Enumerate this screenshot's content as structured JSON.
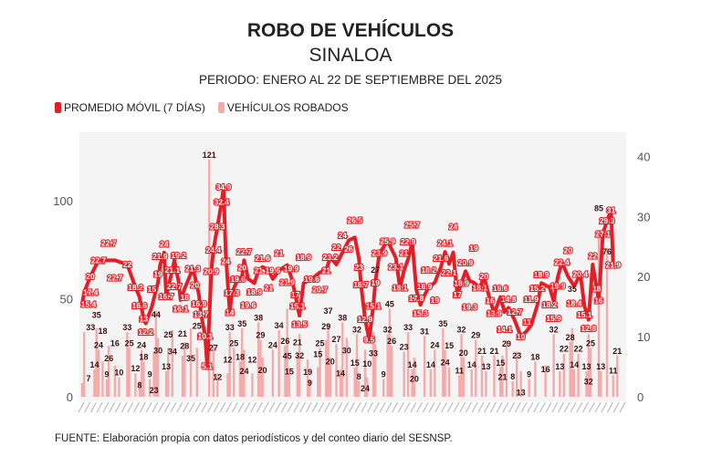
{
  "title": "ROBO DE VEHÍCULOS",
  "subtitle": "SINALOA",
  "period": "PERIODO: ENERO AL 22 DE SEPTIEMBRE DEL 2025",
  "footer": "FUENTE: Elaboración propia con datos periodísticos y del conteo diario del SESNSP.",
  "chart_data": {
    "type": "bar+line",
    "legend_position": "top-left",
    "grid": true,
    "x_unit": "day of year 2025",
    "xlim": [
      1,
      265
    ],
    "left_axis": {
      "ylim": [
        0,
        135
      ],
      "ticks": [
        0,
        50,
        100
      ]
    },
    "right_axis": {
      "ylim": [
        0,
        44
      ],
      "ticks": [
        0,
        10,
        20,
        30,
        40
      ]
    },
    "colors": {
      "line": "#e41e26",
      "bars": "#f4aaaa",
      "plot_bg": "#f4f4f4"
    },
    "series": [
      {
        "name": "VEHÍCULOS ROBADOS",
        "axis": "left",
        "type": "bar",
        "points": [
          [
            1,
            7
          ],
          [
            2,
            33
          ],
          [
            7,
            14
          ],
          [
            8,
            35
          ],
          [
            9,
            24
          ],
          [
            11,
            18
          ],
          [
            13,
            9
          ],
          [
            14,
            26
          ],
          [
            17,
            16
          ],
          [
            19,
            10
          ],
          [
            23,
            33
          ],
          [
            24,
            25
          ],
          [
            27,
            12
          ],
          [
            29,
            8
          ],
          [
            30,
            24
          ],
          [
            31,
            18
          ],
          [
            34,
            9
          ],
          [
            36,
            23
          ],
          [
            37,
            44
          ],
          [
            38,
            30
          ],
          [
            42,
            13
          ],
          [
            43,
            25
          ],
          [
            45,
            34
          ],
          [
            50,
            21
          ],
          [
            51,
            28
          ],
          [
            54,
            35
          ],
          [
            57,
            25
          ],
          [
            63,
            121
          ],
          [
            65,
            27
          ],
          [
            67,
            12
          ],
          [
            72,
            12
          ],
          [
            73,
            33
          ],
          [
            75,
            25
          ],
          [
            78,
            18
          ],
          [
            79,
            35
          ],
          [
            80,
            24
          ],
          [
            84,
            12
          ],
          [
            87,
            38
          ],
          [
            88,
            29
          ],
          [
            89,
            20
          ],
          [
            94,
            24
          ],
          [
            97,
            34
          ],
          [
            100,
            26
          ],
          [
            101,
            45
          ],
          [
            102,
            15
          ],
          [
            106,
            21
          ],
          [
            107,
            32
          ],
          [
            111,
            19
          ],
          [
            112,
            9
          ],
          [
            116,
            15
          ],
          [
            117,
            25
          ],
          [
            120,
            29
          ],
          [
            121,
            37
          ],
          [
            122,
            20
          ],
          [
            125,
            27
          ],
          [
            127,
            14
          ],
          [
            128,
            38
          ],
          [
            130,
            30
          ],
          [
            134,
            15
          ],
          [
            135,
            32
          ],
          [
            136,
            8
          ],
          [
            139,
            24
          ],
          [
            140,
            10
          ],
          [
            143,
            33
          ],
          [
            144,
            27
          ],
          [
            148,
            9
          ],
          [
            150,
            32
          ],
          [
            151,
            45
          ],
          [
            152,
            26
          ],
          [
            158,
            23
          ],
          [
            160,
            33
          ],
          [
            162,
            14
          ],
          [
            163,
            20
          ],
          [
            168,
            31
          ],
          [
            171,
            14
          ],
          [
            173,
            24
          ],
          [
            177,
            35
          ],
          [
            178,
            24
          ],
          [
            180,
            15
          ],
          [
            185,
            11
          ],
          [
            186,
            32
          ],
          [
            187,
            20
          ],
          [
            191,
            14
          ],
          [
            193,
            29
          ],
          [
            196,
            21
          ],
          [
            198,
            13
          ],
          [
            202,
            21
          ],
          [
            205,
            15
          ],
          [
            206,
            21
          ],
          [
            208,
            29
          ],
          [
            211,
            8
          ],
          [
            213,
            23
          ],
          [
            215,
            13
          ],
          [
            219,
            9
          ],
          [
            222,
            18
          ],
          [
            227,
            16
          ],
          [
            231,
            32
          ],
          [
            234,
            13
          ],
          [
            236,
            22
          ],
          [
            239,
            28
          ],
          [
            240,
            35
          ],
          [
            241,
            14
          ],
          [
            243,
            22
          ],
          [
            247,
            13
          ],
          [
            248,
            32
          ],
          [
            249,
            25
          ],
          [
            253,
            85
          ],
          [
            254,
            13
          ],
          [
            257,
            76
          ],
          [
            260,
            11
          ],
          [
            262,
            21
          ]
        ]
      },
      {
        "name": "PROMEDIO MÓVIL (7 DÍAS)",
        "axis": "right",
        "type": "line",
        "points": [
          [
            1,
            15.4
          ],
          [
            2,
            17.4
          ],
          [
            5,
            20
          ],
          [
            9,
            22.7
          ],
          [
            14,
            22.7
          ],
          [
            17,
            22.7
          ],
          [
            23,
            22
          ],
          [
            27,
            18.2
          ],
          [
            29,
            16.6
          ],
          [
            31,
            13
          ],
          [
            32,
            12.2
          ],
          [
            35,
            15
          ],
          [
            38,
            19
          ],
          [
            39,
            21.9
          ],
          [
            41,
            24
          ],
          [
            42,
            16.7
          ],
          [
            45,
            21.1
          ],
          [
            46,
            22.7
          ],
          [
            48,
            19.2
          ],
          [
            49,
            16.1
          ],
          [
            51,
            18
          ],
          [
            55,
            21.3
          ],
          [
            56,
            20
          ],
          [
            58,
            16.9
          ],
          [
            59,
            13.7
          ],
          [
            61,
            10.1
          ],
          [
            62,
            5.1
          ],
          [
            64,
            20.9
          ],
          [
            65,
            24.4
          ],
          [
            67,
            28.3
          ],
          [
            69,
            32.4
          ],
          [
            70,
            34.9
          ],
          [
            71,
            24
          ],
          [
            73,
            14
          ],
          [
            74,
            17.3
          ],
          [
            77,
            19.6
          ],
          [
            79,
            20
          ],
          [
            80,
            22.7
          ],
          [
            82,
            19.6
          ],
          [
            85,
            18.9
          ],
          [
            87,
            21
          ],
          [
            89,
            21.6
          ],
          [
            92,
            21
          ],
          [
            94,
            19.6
          ],
          [
            97,
            21
          ],
          [
            101,
            21.9
          ],
          [
            103,
            19.9
          ],
          [
            105,
            17
          ],
          [
            106,
            15.1
          ],
          [
            107,
            13.5
          ],
          [
            109,
            18.9
          ],
          [
            113,
            19.6
          ],
          [
            117,
            20.7
          ],
          [
            120,
            21
          ],
          [
            122,
            23.2
          ],
          [
            125,
            22
          ],
          [
            128,
            24
          ],
          [
            131,
            26
          ],
          [
            134,
            26.5
          ],
          [
            136,
            23
          ],
          [
            137,
            18.7
          ],
          [
            139,
            12.9
          ],
          [
            141,
            9.5
          ],
          [
            143,
            15.1
          ],
          [
            144,
            19
          ],
          [
            146,
            23.9
          ],
          [
            150,
            25.9
          ],
          [
            154,
            23.1
          ],
          [
            156,
            18.1
          ],
          [
            158,
            21
          ],
          [
            160,
            22.9
          ],
          [
            162,
            25.7
          ],
          [
            164,
            17.8
          ],
          [
            166,
            15.3
          ],
          [
            168,
            16.9
          ],
          [
            170,
            18.2
          ],
          [
            173,
            19
          ],
          [
            176,
            21.6
          ],
          [
            178,
            24.1
          ],
          [
            180,
            22.1
          ],
          [
            182,
            24
          ],
          [
            184,
            17
          ],
          [
            186,
            18.9
          ],
          [
            188,
            20.9
          ],
          [
            190,
            19.3
          ],
          [
            192,
            19
          ],
          [
            195,
            18.1
          ],
          [
            197,
            20
          ],
          [
            200,
            16
          ],
          [
            202,
            13.9
          ],
          [
            205,
            16.6
          ],
          [
            207,
            14.1
          ],
          [
            209,
            14.8
          ],
          [
            212,
            12.7
          ],
          [
            215,
            10
          ],
          [
            218,
            11
          ],
          [
            220,
            11.9
          ],
          [
            223,
            15.2
          ],
          [
            225,
            18.9
          ],
          [
            229,
            18.2
          ],
          [
            231,
            15.9
          ],
          [
            233,
            19.9
          ],
          [
            235,
            22.4
          ],
          [
            238,
            20
          ],
          [
            241,
            18.4
          ],
          [
            244,
            20.4
          ],
          [
            246,
            15.1
          ],
          [
            248,
            12.8
          ],
          [
            250,
            22
          ],
          [
            252,
            18
          ],
          [
            253,
            16
          ],
          [
            255,
            27.1
          ],
          [
            257,
            29.3
          ],
          [
            259,
            31
          ],
          [
            260,
            21.9
          ]
        ]
      }
    ]
  }
}
